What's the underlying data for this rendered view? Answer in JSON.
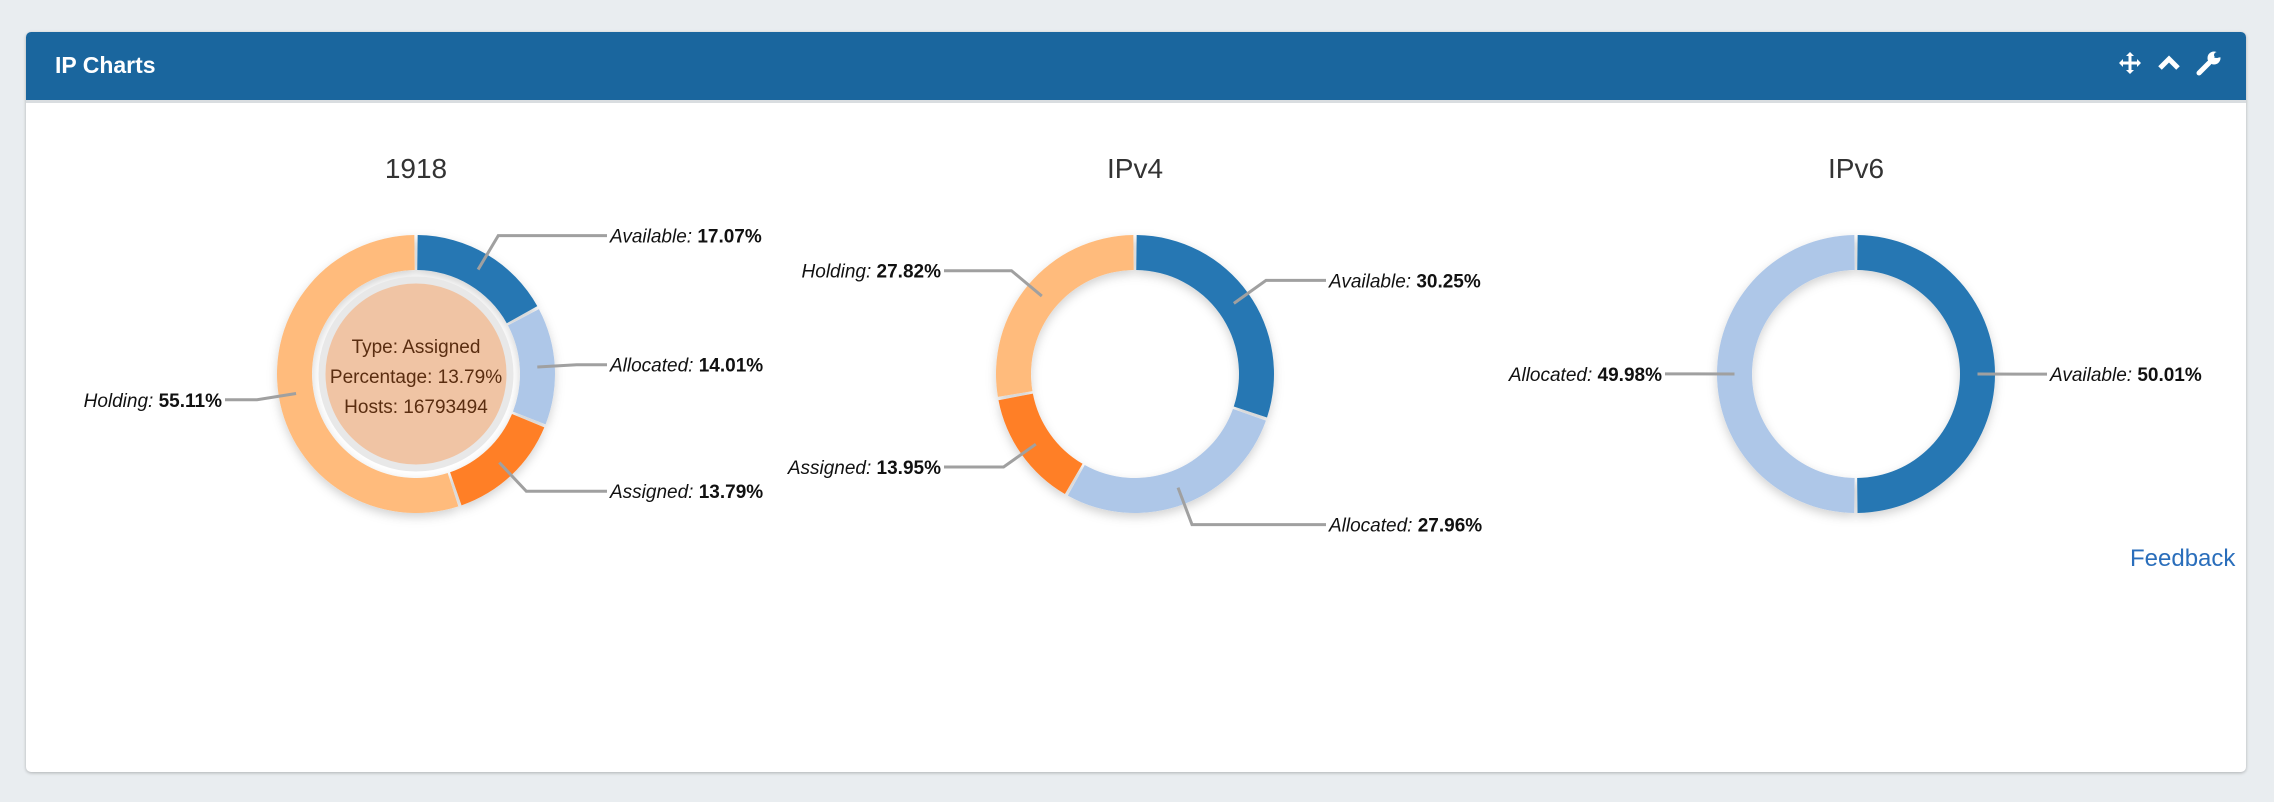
{
  "panel": {
    "title": "IP Charts",
    "icons": [
      "move-icon",
      "chevron-up-icon",
      "wrench-icon"
    ],
    "feedback_label": "Feedback"
  },
  "colors": {
    "Available": "#2677b3",
    "Allocated": "#aec7e8",
    "Assigned": "#ff7f27",
    "Holding": "#ffbb7c"
  },
  "chart_data": [
    {
      "type": "pie",
      "title": "1918",
      "categories": [
        "Available",
        "Allocated",
        "Assigned",
        "Holding"
      ],
      "values": [
        17.07,
        14.01,
        13.79,
        55.11
      ],
      "labels": [
        "17.07%",
        "14.01%",
        "13.79%",
        "55.11%"
      ],
      "tooltip": {
        "type": "Type: Assigned",
        "percentage": "Percentage: 13.79%",
        "hosts": "Hosts: 16793494"
      }
    },
    {
      "type": "pie",
      "title": "IPv4",
      "categories": [
        "Available",
        "Allocated",
        "Assigned",
        "Holding"
      ],
      "values": [
        30.25,
        27.96,
        13.95,
        27.82
      ],
      "labels": [
        "30.25%",
        "27.96%",
        "13.95%",
        "27.82%"
      ]
    },
    {
      "type": "pie",
      "title": "IPv6",
      "categories": [
        "Available",
        "Allocated"
      ],
      "values": [
        50.01,
        49.98
      ],
      "labels": [
        "50.01%",
        "49.98%"
      ]
    }
  ]
}
